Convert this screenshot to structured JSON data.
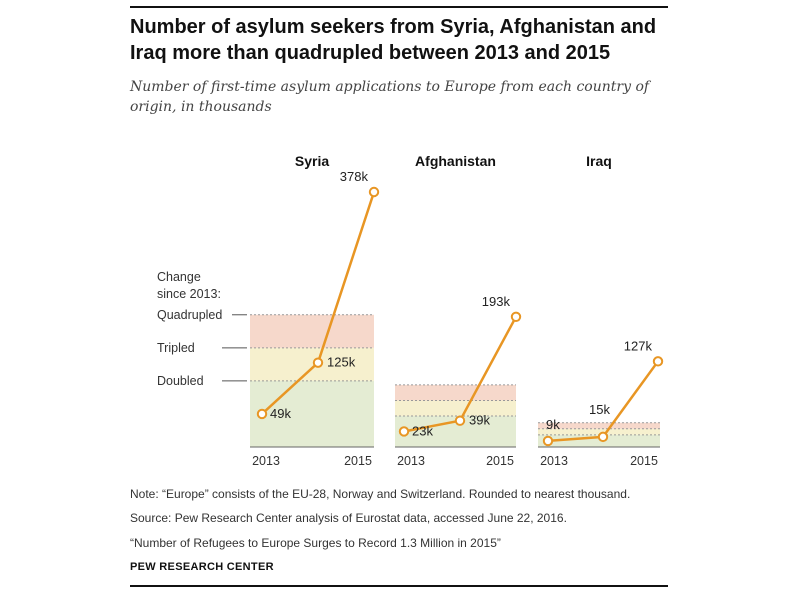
{
  "title": "Number of asylum seekers from Syria, Afghanistan and Iraq more than quadrupled between 2013 and 2015",
  "subtitle": "Number of first-time asylum applications to Europe from each country of origin, in thousands",
  "legend": {
    "heading_line1": "Change",
    "heading_line2": "since 2013:",
    "quadrupled": "Quadrupled",
    "tripled": "Tripled",
    "doubled": "Doubled"
  },
  "colors": {
    "line": "#E89624",
    "band_base": "#E4ECD3",
    "band_doubled": "#F6F0CE",
    "band_tripled": "#F6D8CB",
    "guide": "#999999"
  },
  "chart_data": {
    "type": "line",
    "unit": "thousands",
    "x": [
      "2013",
      "2014",
      "2015"
    ],
    "x_tick_labels": [
      "2013",
      "2015"
    ],
    "series": [
      {
        "name": "Syria",
        "values": [
          49,
          125,
          378
        ],
        "labels": [
          "49k",
          "125k",
          "378k"
        ]
      },
      {
        "name": "Afghanistan",
        "values": [
          23,
          39,
          193
        ],
        "labels": [
          "23k",
          "39k",
          "193k"
        ]
      },
      {
        "name": "Iraq",
        "values": [
          9,
          15,
          127
        ],
        "labels": [
          "9k",
          "15k",
          "127k"
        ]
      }
    ],
    "reference_bands": [
      "Doubled",
      "Tripled",
      "Quadrupled"
    ],
    "ylim": [
      0,
      400
    ]
  },
  "footer": {
    "note": "Note: “Europe” consists of the EU-28, Norway and Switzerland. Rounded to nearest thousand.",
    "source": "Source: Pew Research Center analysis of Eurostat data, accessed June 22, 2016.",
    "report": "“Number of Refugees to Europe Surges to Record 1.3 Million in 2015”",
    "brand": "PEW RESEARCH CENTER"
  }
}
